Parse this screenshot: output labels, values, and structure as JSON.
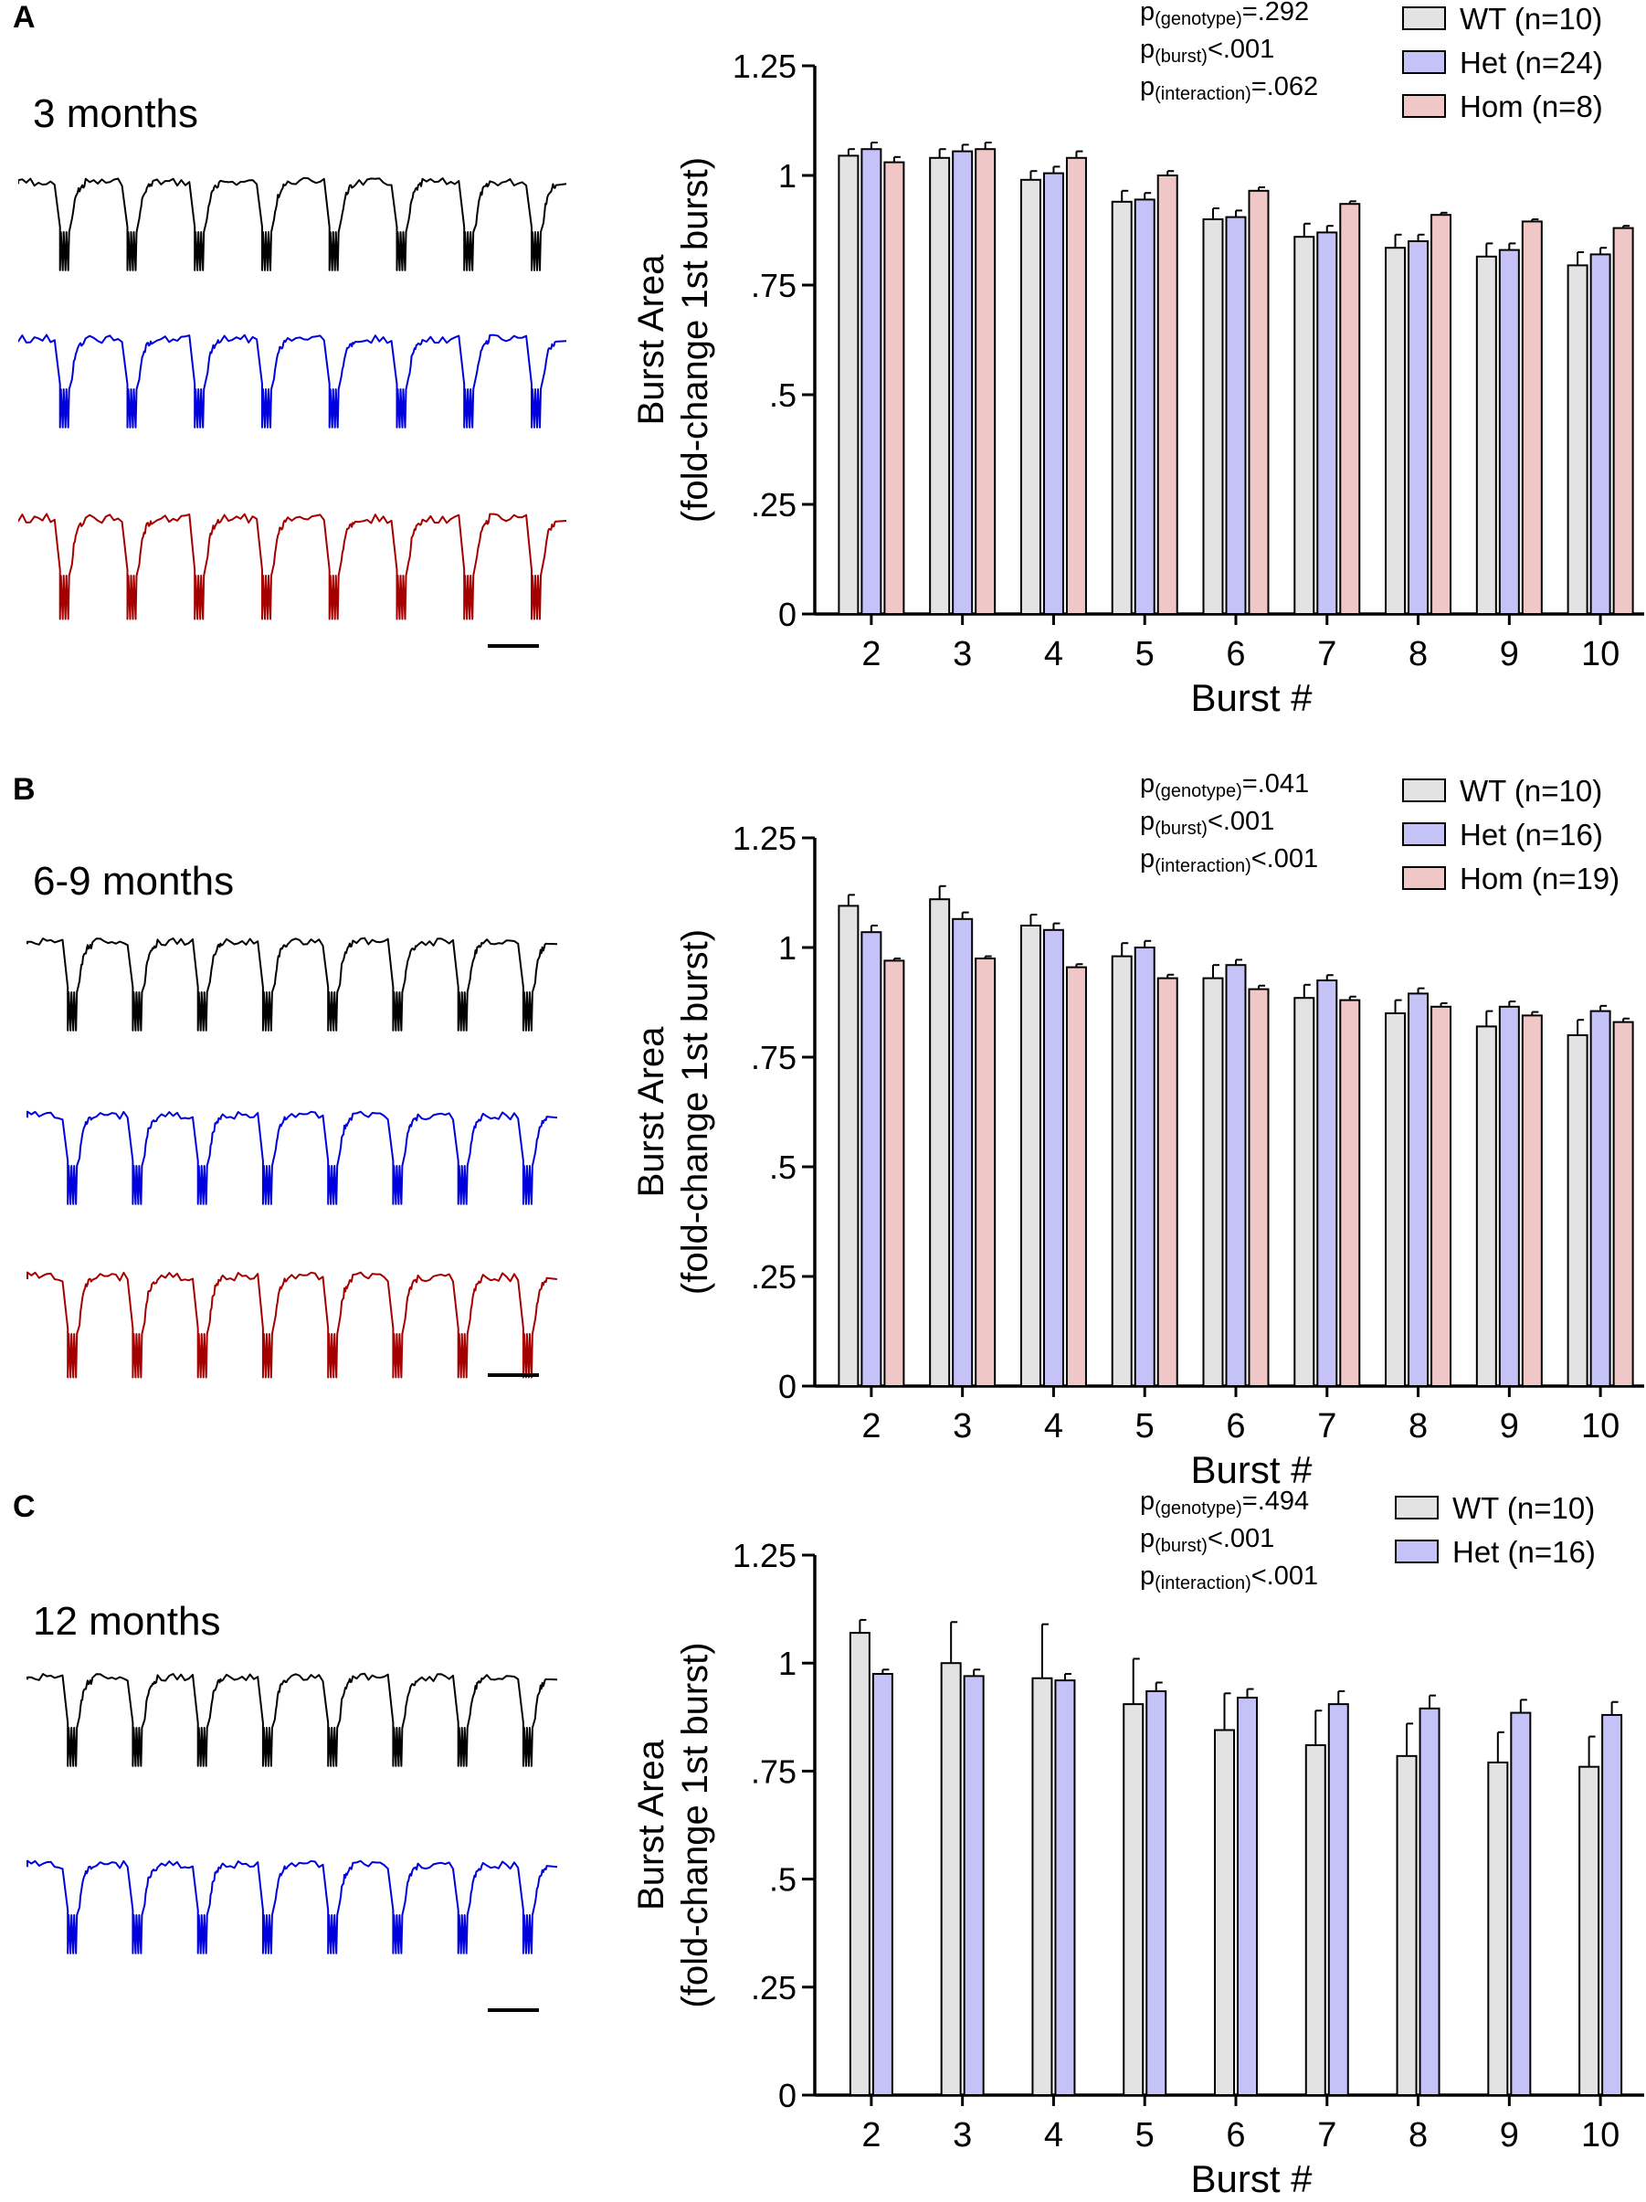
{
  "colors": {
    "WT": "#e3e3e3",
    "Het": "#c5c2f8",
    "Hom": "#f0c7c7",
    "trace_wt": "#000000",
    "trace_het": "#0000dd",
    "trace_hom": "#a50000"
  },
  "panels": [
    {
      "letter": "A",
      "age": "3 months"
    },
    {
      "letter": "B",
      "age": "6-9 months"
    },
    {
      "letter": "C",
      "age": "12 months"
    }
  ],
  "chart_data": [
    {
      "type": "bar",
      "panel": "A",
      "title": "",
      "xlabel": "Burst #",
      "ylabel_line1": "Burst Area",
      "ylabel_line2": "(fold-change 1st burst)",
      "categories": [
        "2",
        "3",
        "4",
        "5",
        "6",
        "7",
        "8",
        "9",
        "10"
      ],
      "ylim": [
        0,
        1.25
      ],
      "yticks": [
        0,
        0.25,
        0.5,
        0.75,
        1,
        1.25
      ],
      "ytick_labels": [
        "0",
        ".25",
        ".5",
        ".75",
        "1",
        "1.25"
      ],
      "stats": [
        {
          "p": "p",
          "sub": "(genotype)",
          "val": "=.292"
        },
        {
          "p": "p",
          "sub": "(burst)",
          "val": "<.001"
        },
        {
          "p": "p",
          "sub": "(interaction)",
          "val": "=.062"
        }
      ],
      "series": [
        {
          "key": "WT",
          "name": "WT (n=10)",
          "values": [
            1.045,
            1.04,
            0.99,
            0.94,
            0.9,
            0.86,
            0.835,
            0.815,
            0.795
          ],
          "errors": [
            0.015,
            0.02,
            0.02,
            0.025,
            0.025,
            0.03,
            0.03,
            0.03,
            0.03
          ]
        },
        {
          "key": "Het",
          "name": "Het (n=24)",
          "values": [
            1.06,
            1.055,
            1.005,
            0.945,
            0.905,
            0.87,
            0.85,
            0.83,
            0.82
          ],
          "errors": [
            0.015,
            0.015,
            0.015,
            0.015,
            0.015,
            0.015,
            0.015,
            0.015,
            0.015
          ]
        },
        {
          "key": "Hom",
          "name": "Hom (n=8)",
          "values": [
            1.03,
            1.06,
            1.04,
            1.0,
            0.965,
            0.935,
            0.91,
            0.895,
            0.88
          ],
          "errors": [
            0.012,
            0.015,
            0.015,
            0.01,
            0.008,
            0.006,
            0.005,
            0.005,
            0.005
          ]
        }
      ]
    },
    {
      "type": "bar",
      "panel": "B",
      "title": "",
      "xlabel": "Burst #",
      "ylabel_line1": "Burst Area",
      "ylabel_line2": "(fold-change 1st burst)",
      "categories": [
        "2",
        "3",
        "4",
        "5",
        "6",
        "7",
        "8",
        "9",
        "10"
      ],
      "ylim": [
        0,
        1.25
      ],
      "yticks": [
        0,
        0.25,
        0.5,
        0.75,
        1,
        1.25
      ],
      "ytick_labels": [
        "0",
        ".25",
        ".5",
        ".75",
        "1",
        "1.25"
      ],
      "stats": [
        {
          "p": "p",
          "sub": "(genotype)",
          "val": "=.041"
        },
        {
          "p": "p",
          "sub": "(burst)",
          "val": "<.001"
        },
        {
          "p": "p",
          "sub": "(interaction)",
          "val": "<.001"
        }
      ],
      "series": [
        {
          "key": "WT",
          "name": "WT (n=10)",
          "values": [
            1.095,
            1.11,
            1.05,
            0.98,
            0.93,
            0.885,
            0.85,
            0.82,
            0.8
          ],
          "errors": [
            0.025,
            0.03,
            0.025,
            0.03,
            0.03,
            0.03,
            0.03,
            0.035,
            0.035
          ]
        },
        {
          "key": "Het",
          "name": "Het (n=16)",
          "values": [
            1.035,
            1.065,
            1.04,
            1.0,
            0.96,
            0.925,
            0.895,
            0.865,
            0.855
          ],
          "errors": [
            0.015,
            0.015,
            0.015,
            0.015,
            0.012,
            0.012,
            0.012,
            0.012,
            0.012
          ]
        },
        {
          "key": "Hom",
          "name": "Hom (n=19)",
          "values": [
            0.97,
            0.975,
            0.955,
            0.93,
            0.905,
            0.88,
            0.865,
            0.845,
            0.83
          ],
          "errors": [
            0.005,
            0.005,
            0.007,
            0.008,
            0.008,
            0.008,
            0.008,
            0.008,
            0.008
          ]
        }
      ]
    },
    {
      "type": "bar",
      "panel": "C",
      "title": "",
      "xlabel": "Burst #",
      "ylabel_line1": "Burst Area",
      "ylabel_line2": "(fold-change 1st burst)",
      "categories": [
        "2",
        "3",
        "4",
        "5",
        "6",
        "7",
        "8",
        "9",
        "10"
      ],
      "ylim": [
        0,
        1.25
      ],
      "yticks": [
        0,
        0.25,
        0.5,
        0.75,
        1,
        1.25
      ],
      "ytick_labels": [
        "0",
        ".25",
        ".5",
        ".75",
        "1",
        "1.25"
      ],
      "stats": [
        {
          "p": "p",
          "sub": "(genotype)",
          "val": "=.494"
        },
        {
          "p": "p",
          "sub": "(burst)",
          "val": "<.001"
        },
        {
          "p": "p",
          "sub": "(interaction)",
          "val": "<.001"
        }
      ],
      "series": [
        {
          "key": "WT",
          "name": "WT (n=10)",
          "values": [
            1.07,
            1.0,
            0.965,
            0.905,
            0.845,
            0.81,
            0.785,
            0.77,
            0.76
          ],
          "errors": [
            0.03,
            0.095,
            0.125,
            0.105,
            0.085,
            0.08,
            0.075,
            0.07,
            0.07
          ]
        },
        {
          "key": "Het",
          "name": "Het (n=16)",
          "values": [
            0.975,
            0.97,
            0.96,
            0.935,
            0.92,
            0.905,
            0.895,
            0.885,
            0.88
          ],
          "errors": [
            0.01,
            0.015,
            0.015,
            0.02,
            0.02,
            0.03,
            0.03,
            0.03,
            0.03
          ]
        }
      ]
    }
  ]
}
